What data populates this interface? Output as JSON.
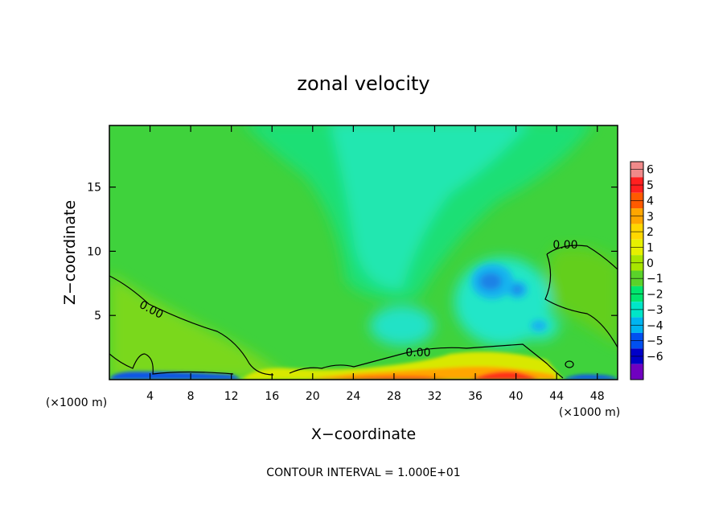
{
  "chart_data": {
    "type": "heatmap",
    "title": "zonal velocity",
    "xlabel": "X−coordinate",
    "ylabel": "Z−coordinate",
    "x_unit_left": "(×1000 m)",
    "x_unit_right": "(×1000 m)",
    "xlim": [
      0,
      50
    ],
    "ylim": [
      0,
      19.8
    ],
    "x_ticks": [
      4,
      8,
      12,
      16,
      20,
      24,
      28,
      32,
      36,
      40,
      44,
      48
    ],
    "y_ticks": [
      5,
      10,
      15
    ],
    "colorbar": {
      "levels": [
        6,
        5,
        4,
        3,
        2,
        1,
        0,
        -1,
        -2,
        -3,
        -4,
        -5,
        -6
      ],
      "level_labels": [
        "6",
        "5",
        "4",
        "3",
        "2",
        "1",
        "0",
        "−1",
        "−2",
        "−3",
        "−4",
        "−5",
        "−6"
      ],
      "colors": [
        "#f08a8a",
        "#ff2020",
        "#ff5a00",
        "#ffa600",
        "#ffd700",
        "#e6f000",
        "#a8e600",
        "#5ad22a",
        "#00e66e",
        "#00e6c8",
        "#00b4f0",
        "#0050f0",
        "#0000c8",
        "#7000c0"
      ]
    },
    "contour_label": "0.00",
    "contour_interval_text": "CONTOUR INTERVAL = 1.000E+01"
  }
}
